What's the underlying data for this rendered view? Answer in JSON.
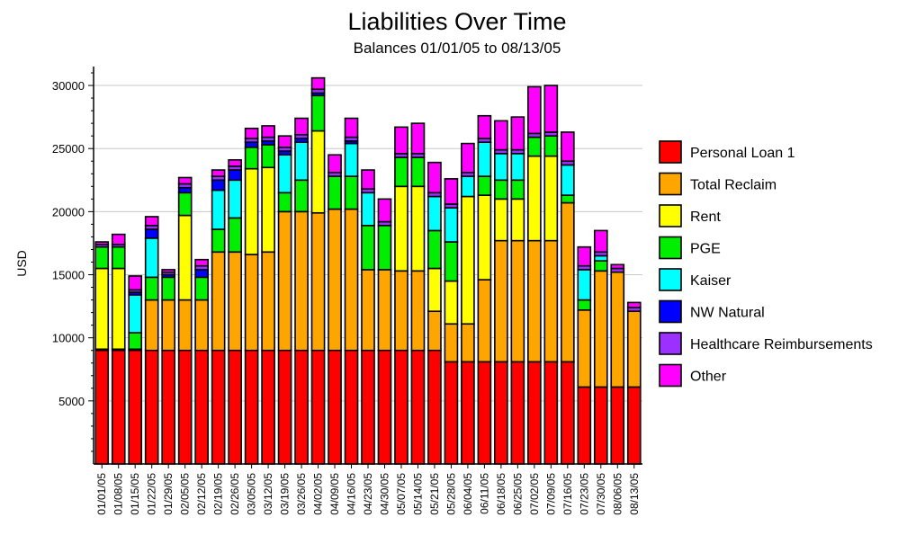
{
  "chart_data": {
    "type": "bar",
    "stacked": true,
    "title": "Liabilities Over Time",
    "subtitle": "Balances 01/01/05 to 08/13/05",
    "xlabel": "",
    "ylabel": "USD",
    "ylim": [
      0,
      31500
    ],
    "yticks": [
      5000,
      10000,
      15000,
      20000,
      25000,
      30000
    ],
    "grid": true,
    "legend_position": "right",
    "categories": [
      "01/01/05",
      "01/08/05",
      "01/15/05",
      "01/22/05",
      "01/29/05",
      "02/05/05",
      "02/12/05",
      "02/19/05",
      "02/26/05",
      "03/05/05",
      "03/12/05",
      "03/19/05",
      "03/26/05",
      "04/02/05",
      "04/09/05",
      "04/16/05",
      "04/23/05",
      "04/30/05",
      "05/07/05",
      "05/14/05",
      "05/21/05",
      "05/28/05",
      "06/04/05",
      "06/11/05",
      "06/18/05",
      "06/25/05",
      "07/02/05",
      "07/09/05",
      "07/16/05",
      "07/23/05",
      "07/30/05",
      "08/06/05",
      "08/13/05"
    ],
    "series": [
      {
        "name": "Personal Loan 1",
        "color": "#ff0000",
        "values": [
          9000,
          9000,
          9000,
          9000,
          9000,
          9000,
          9000,
          9000,
          9000,
          9000,
          9000,
          9000,
          9000,
          9000,
          9000,
          9000,
          9000,
          9000,
          9000,
          9000,
          9000,
          8100,
          8100,
          8100,
          8100,
          8100,
          8100,
          8100,
          8100,
          6100,
          6100,
          6100,
          6100
        ]
      },
      {
        "name": "Total Reclaim",
        "color": "#ffa500",
        "values": [
          100,
          100,
          100,
          4000,
          4000,
          4000,
          4000,
          7800,
          7800,
          7600,
          7800,
          11000,
          11000,
          10900,
          11200,
          11200,
          6400,
          6400,
          6300,
          6300,
          3100,
          3000,
          3000,
          6500,
          9600,
          9600,
          9600,
          9600,
          12600,
          6100,
          9200,
          9100,
          6000
        ]
      },
      {
        "name": "Rent",
        "color": "#ffff00",
        "values": [
          6400,
          6400,
          0,
          0,
          0,
          6700,
          0,
          0,
          0,
          6800,
          6700,
          0,
          0,
          6500,
          0,
          0,
          0,
          0,
          6700,
          6700,
          3400,
          3400,
          10100,
          6700,
          3300,
          3300,
          6700,
          6700,
          0,
          0,
          0,
          0,
          0
        ]
      },
      {
        "name": "PGE",
        "color": "#00ee00",
        "values": [
          1700,
          1700,
          1300,
          1800,
          1800,
          1800,
          1800,
          1800,
          2700,
          1700,
          1800,
          1500,
          2500,
          2800,
          2600,
          2600,
          3500,
          3500,
          2300,
          2300,
          3000,
          3100,
          0,
          1500,
          1500,
          1500,
          1500,
          1600,
          600,
          800,
          800,
          0,
          0
        ]
      },
      {
        "name": "Kaiser",
        "color": "#00ffff",
        "values": [
          0,
          0,
          3000,
          3100,
          0,
          0,
          0,
          3100,
          3000,
          0,
          0,
          3000,
          3000,
          0,
          0,
          2600,
          2600,
          0,
          0,
          0,
          2700,
          2700,
          1600,
          2700,
          2100,
          2100,
          0,
          0,
          2400,
          2400,
          400,
          0,
          0
        ]
      },
      {
        "name": "NW Natural",
        "color": "#0000ff",
        "values": [
          0,
          0,
          200,
          700,
          200,
          400,
          600,
          800,
          800,
          400,
          300,
          300,
          300,
          200,
          0,
          200,
          0,
          0,
          0,
          0,
          0,
          0,
          0,
          0,
          0,
          0,
          0,
          0,
          0,
          0,
          0,
          0,
          0
        ]
      },
      {
        "name": "Healthcare Reimbursements",
        "color": "#9b30ff",
        "values": [
          200,
          200,
          200,
          300,
          200,
          300,
          300,
          300,
          300,
          300,
          300,
          300,
          300,
          300,
          300,
          300,
          300,
          300,
          300,
          300,
          300,
          300,
          300,
          300,
          300,
          300,
          300,
          300,
          300,
          300,
          300,
          300,
          300
        ]
      },
      {
        "name": "Other",
        "color": "#ff00ff",
        "values": [
          200,
          800,
          1100,
          700,
          200,
          500,
          500,
          500,
          500,
          800,
          900,
          900,
          1300,
          900,
          1400,
          1500,
          1500,
          1800,
          2100,
          2400,
          2400,
          2000,
          2300,
          1800,
          2300,
          2600,
          3700,
          3700,
          2300,
          1500,
          1700,
          300,
          400
        ]
      }
    ]
  }
}
